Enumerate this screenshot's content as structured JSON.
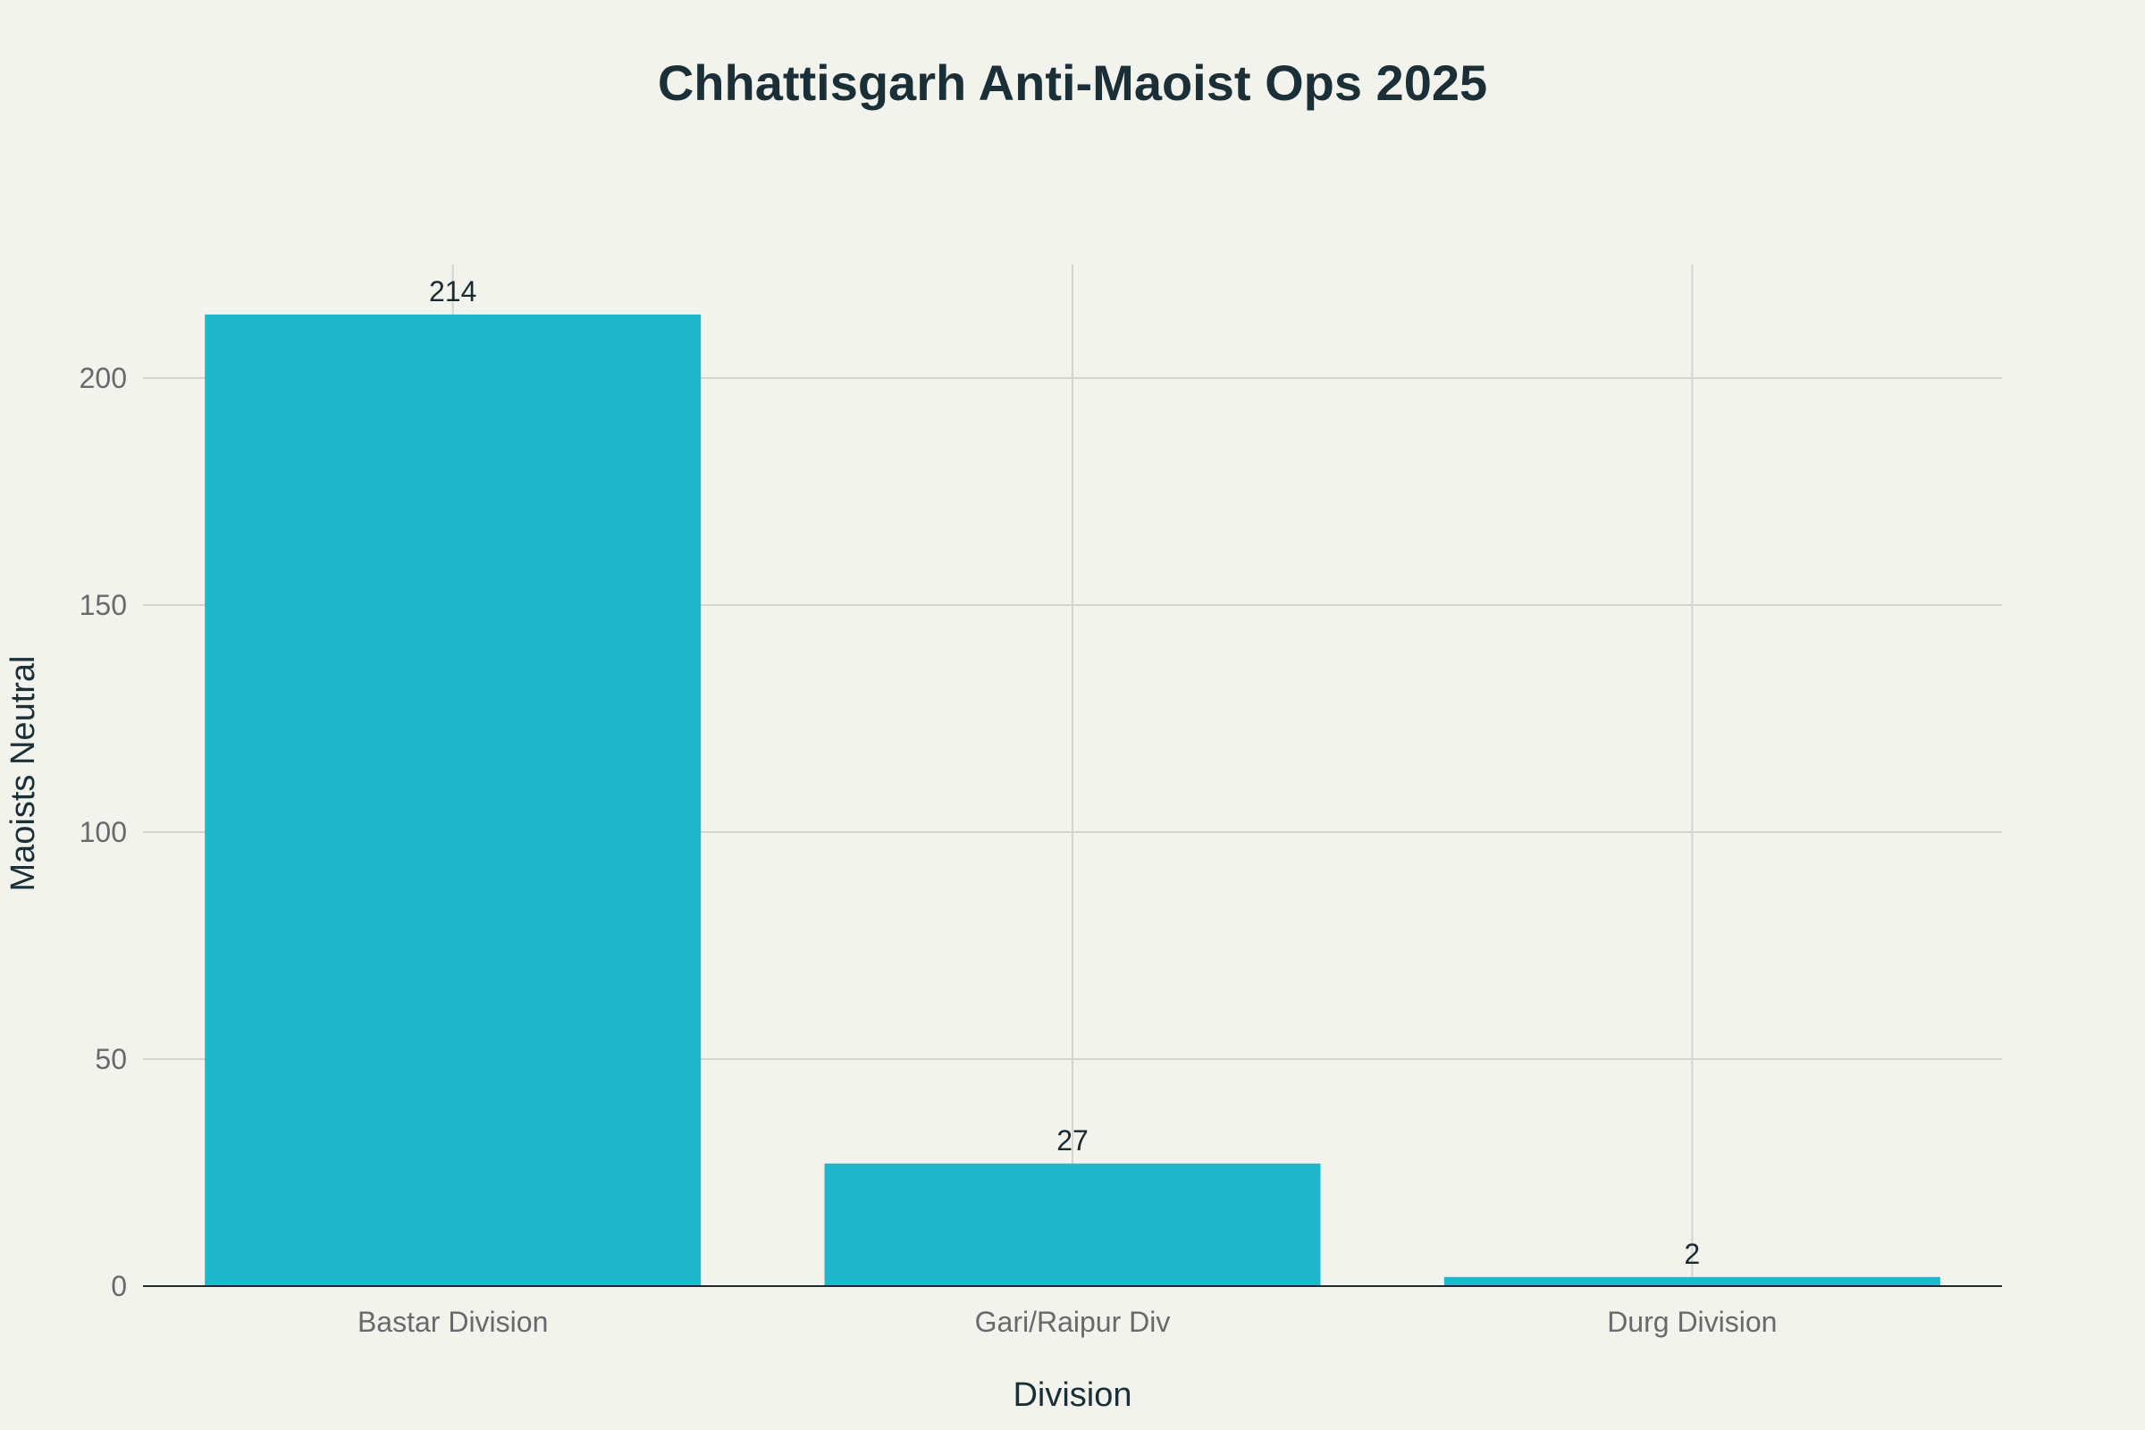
{
  "chart_data": {
    "type": "bar",
    "title": "Chhattisgarh Anti-Maoist Ops 2025",
    "xlabel": "Division",
    "ylabel": "Maoists Neutral",
    "categories": [
      "Bastar Division",
      "Gari/Raipur Div",
      "Durg Division"
    ],
    "values": [
      214,
      27,
      2
    ],
    "data_labels": [
      "214",
      "27",
      "2"
    ],
    "ylim": [
      0,
      225
    ],
    "yticks": [
      0,
      50,
      100,
      150,
      200
    ],
    "ytick_labels": [
      "0",
      "50",
      "100",
      "150",
      "200"
    ],
    "grid": true,
    "legend": "none",
    "bar_color": "#21b7cb"
  }
}
